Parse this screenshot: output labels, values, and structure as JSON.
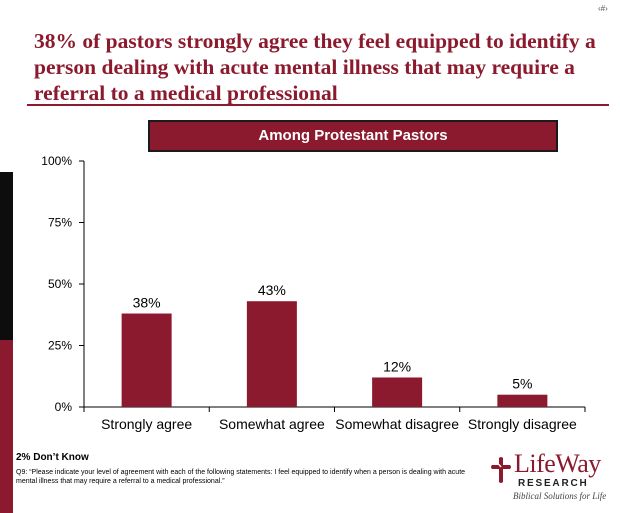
{
  "slide_number": "‹#›",
  "title": "38% of pastors strongly agree they feel equipped to identify a person dealing with acute mental illness that may require a referral to a medical professional",
  "colors": {
    "accent": "#8b1a2e",
    "bar": "#8b1a2e",
    "side_black": "#0d0d0d"
  },
  "chart_data": {
    "type": "bar",
    "title": "Among Protestant Pastors",
    "categories": [
      "Strongly agree",
      "Somewhat agree",
      "Somewhat disagree",
      "Strongly disagree"
    ],
    "values": [
      38,
      43,
      12,
      5
    ],
    "value_labels": [
      "38%",
      "43%",
      "12%",
      "5%"
    ],
    "xlabel": "",
    "ylabel": "",
    "ylim": [
      0,
      100
    ],
    "yticks": [
      0,
      25,
      50,
      75,
      100
    ],
    "ytick_labels": [
      "0%",
      "25%",
      "50%",
      "75%",
      "100%"
    ],
    "grid": false,
    "legend": "none"
  },
  "dont_know": "2% Don’t Know",
  "footnote": "Q9: “Please indicate your level of agreement with each of the following statements: I feel equipped to identify when a person is dealing with acute mental illness that may require a referral to a medical professional.”",
  "logo": {
    "name": "LifeWay",
    "subtitle": "RESEARCH",
    "tagline": "Biblical Solutions for Life",
    "icon": "lifeway-cross-icon"
  }
}
